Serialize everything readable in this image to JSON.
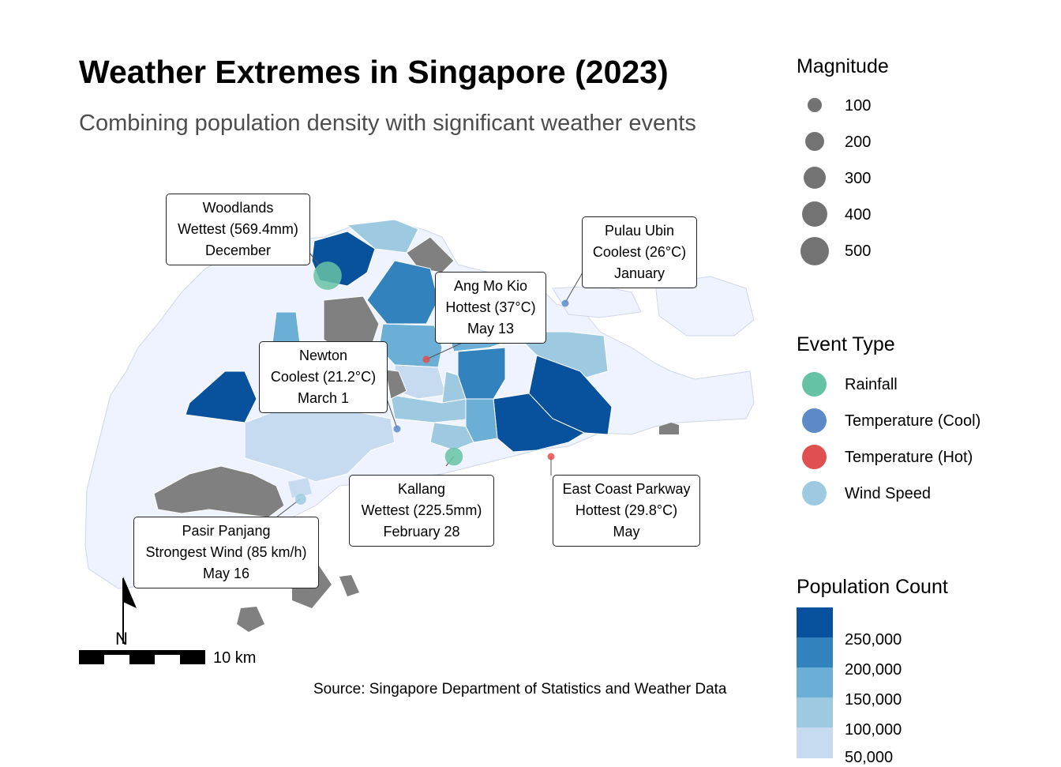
{
  "title": "Weather Extremes in Singapore (2023)",
  "subtitle": "Combining population density with significant weather events",
  "source": "Source: Singapore Department of Statistics and Weather Data",
  "scale_bar": {
    "label": "10 km"
  },
  "north_arrow": {
    "label": "N"
  },
  "colors": {
    "no_data": "#808080",
    "land_low": "#eef3ff",
    "pop_50k": "#c6dbef",
    "pop_100k": "#9ecae1",
    "pop_150k": "#6baed6",
    "pop_200k": "#3182bd",
    "pop_250k": "#08519c",
    "rainfall": "#66c2a5",
    "temp_cool": "#5b8ac6",
    "temp_hot": "#e05050",
    "wind": "#9ecae1"
  },
  "events": [
    {
      "id": "woodlands",
      "place": "Woodlands",
      "detail": "Wettest (569.4mm)",
      "when": "December",
      "type": "Rainfall",
      "magnitude": 569.4
    },
    {
      "id": "pulau-ubin",
      "place": "Pulau Ubin",
      "detail": "Coolest (26°C)",
      "when": "January",
      "type": "Temperature (Cool)",
      "magnitude": 26
    },
    {
      "id": "ang-mo-kio",
      "place": "Ang Mo Kio",
      "detail": "Hottest (37°C)",
      "when": "May 13",
      "type": "Temperature (Hot)",
      "magnitude": 37
    },
    {
      "id": "newton",
      "place": "Newton",
      "detail": "Coolest (21.2°C)",
      "when": "March 1",
      "type": "Temperature (Cool)",
      "magnitude": 21.2
    },
    {
      "id": "kallang",
      "place": "Kallang",
      "detail": "Wettest (225.5mm)",
      "when": "February 28",
      "type": "Rainfall",
      "magnitude": 225.5
    },
    {
      "id": "east-coast",
      "place": "East Coast Parkway",
      "detail": "Hottest (29.8°C)",
      "when": "May",
      "type": "Temperature (Hot)",
      "magnitude": 29.8
    },
    {
      "id": "pasir-panjang",
      "place": "Pasir Panjang",
      "detail": "Strongest Wind (85 km/h)",
      "when": "May 16",
      "type": "Wind Speed",
      "magnitude": 85
    }
  ],
  "legend": {
    "magnitude": {
      "title": "Magnitude",
      "items": [
        "100",
        "200",
        "300",
        "400",
        "500"
      ]
    },
    "event_type": {
      "title": "Event Type",
      "items": [
        "Rainfall",
        "Temperature (Cool)",
        "Temperature (Hot)",
        "Wind Speed"
      ]
    },
    "population": {
      "title": "Population Count",
      "items": [
        "250,000",
        "200,000",
        "150,000",
        "100,000",
        "50,000"
      ]
    }
  }
}
